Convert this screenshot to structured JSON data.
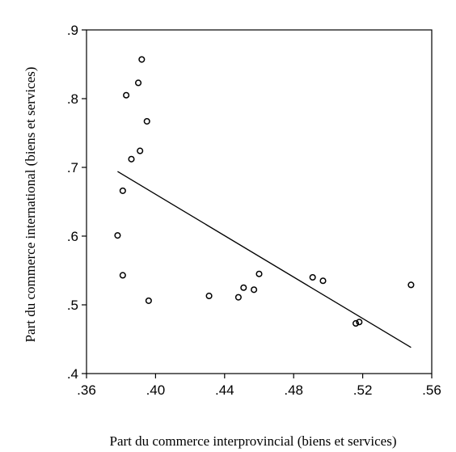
{
  "chart_data": {
    "type": "scatter",
    "title": "",
    "xlabel": "Part du commerce interprovincial (biens et services)",
    "ylabel": "Part du commerce international  (biens et services)",
    "xlim": [
      0.36,
      0.56
    ],
    "ylim": [
      0.4,
      0.9
    ],
    "x_ticks": [
      0.36,
      0.4,
      0.44,
      0.48,
      0.52,
      0.56
    ],
    "x_tick_labels": [
      ".36",
      ".40",
      ".44",
      ".48",
      ".52",
      ".56"
    ],
    "y_ticks": [
      0.4,
      0.5,
      0.6,
      0.7,
      0.8,
      0.9
    ],
    "y_tick_labels": [
      ".4",
      ".5",
      ".6",
      ".7",
      ".8",
      ".9"
    ],
    "grid": false,
    "legend": "none",
    "points": [
      {
        "x": 0.392,
        "y": 0.857
      },
      {
        "x": 0.39,
        "y": 0.823
      },
      {
        "x": 0.383,
        "y": 0.805
      },
      {
        "x": 0.395,
        "y": 0.767
      },
      {
        "x": 0.391,
        "y": 0.724
      },
      {
        "x": 0.386,
        "y": 0.712
      },
      {
        "x": 0.381,
        "y": 0.666
      },
      {
        "x": 0.378,
        "y": 0.601
      },
      {
        "x": 0.381,
        "y": 0.543
      },
      {
        "x": 0.396,
        "y": 0.506
      },
      {
        "x": 0.431,
        "y": 0.513
      },
      {
        "x": 0.448,
        "y": 0.511
      },
      {
        "x": 0.451,
        "y": 0.525
      },
      {
        "x": 0.457,
        "y": 0.522
      },
      {
        "x": 0.46,
        "y": 0.545
      },
      {
        "x": 0.491,
        "y": 0.54
      },
      {
        "x": 0.497,
        "y": 0.535
      },
      {
        "x": 0.516,
        "y": 0.473
      },
      {
        "x": 0.518,
        "y": 0.475
      },
      {
        "x": 0.548,
        "y": 0.529
      }
    ],
    "fit_line": {
      "x": [
        0.378,
        0.548
      ],
      "y": [
        0.694,
        0.438
      ]
    },
    "colors": {
      "axis": "#000000",
      "marker": "#000000",
      "line": "#000000"
    }
  }
}
